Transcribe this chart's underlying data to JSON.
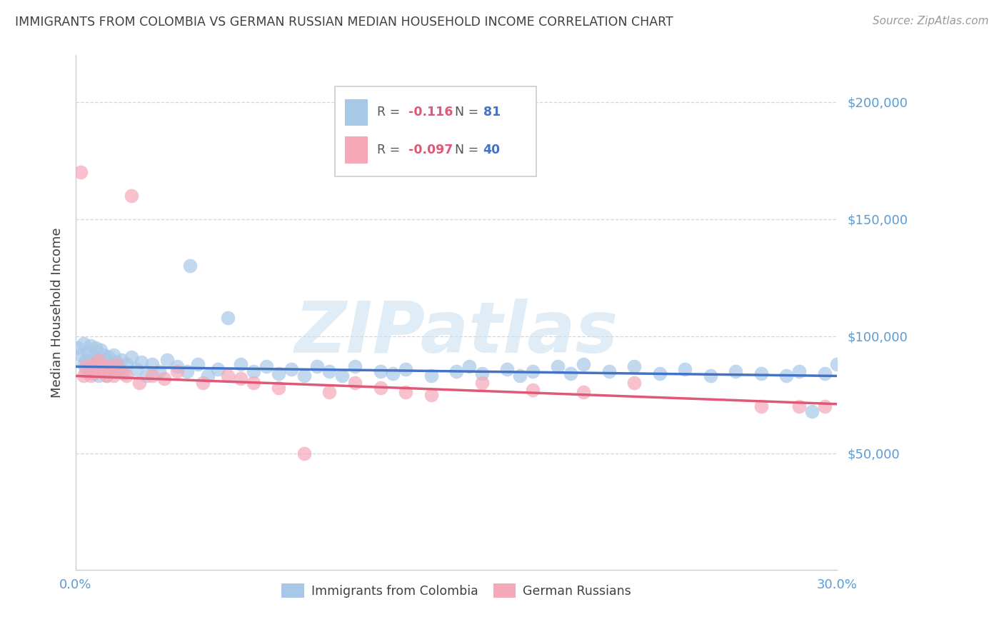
{
  "title": "IMMIGRANTS FROM COLOMBIA VS GERMAN RUSSIAN MEDIAN HOUSEHOLD INCOME CORRELATION CHART",
  "source": "Source: ZipAtlas.com",
  "ylabel": "Median Household Income",
  "legend1_label": "Immigrants from Colombia",
  "legend2_label": "German Russians",
  "watermark": "ZIPatlas",
  "blue_color": "#a8c8e8",
  "pink_color": "#f4a8b8",
  "line_blue": "#4472c4",
  "line_pink": "#e05878",
  "axis_color": "#5b9bd5",
  "title_color": "#404040",
  "grid_color": "#cccccc",
  "blue_x": [
    0.001,
    0.002,
    0.003,
    0.003,
    0.004,
    0.004,
    0.005,
    0.005,
    0.006,
    0.006,
    0.007,
    0.007,
    0.008,
    0.008,
    0.009,
    0.009,
    0.01,
    0.01,
    0.011,
    0.011,
    0.012,
    0.012,
    0.013,
    0.013,
    0.014,
    0.015,
    0.015,
    0.016,
    0.017,
    0.018,
    0.019,
    0.02,
    0.022,
    0.024,
    0.026,
    0.028,
    0.03,
    0.033,
    0.036,
    0.04,
    0.044,
    0.048,
    0.052,
    0.056,
    0.06,
    0.065,
    0.07,
    0.075,
    0.08,
    0.085,
    0.09,
    0.095,
    0.1,
    0.105,
    0.11,
    0.12,
    0.125,
    0.13,
    0.14,
    0.15,
    0.155,
    0.16,
    0.17,
    0.175,
    0.18,
    0.19,
    0.195,
    0.2,
    0.21,
    0.22,
    0.23,
    0.24,
    0.25,
    0.26,
    0.27,
    0.28,
    0.285,
    0.29,
    0.295,
    0.3,
    0.045
  ],
  "blue_y": [
    95000,
    92000,
    97000,
    88000,
    90000,
    85000,
    93000,
    87000,
    96000,
    89000,
    91000,
    84000,
    95000,
    86000,
    90000,
    83000,
    94000,
    88000,
    92000,
    85000,
    89000,
    83000,
    91000,
    87000,
    88000,
    92000,
    85000,
    89000,
    86000,
    90000,
    84000,
    88000,
    91000,
    86000,
    89000,
    83000,
    88000,
    85000,
    90000,
    87000,
    85000,
    88000,
    83000,
    86000,
    108000,
    88000,
    85000,
    87000,
    84000,
    86000,
    83000,
    87000,
    85000,
    83000,
    87000,
    85000,
    84000,
    86000,
    83000,
    85000,
    87000,
    84000,
    86000,
    83000,
    85000,
    87000,
    84000,
    88000,
    85000,
    87000,
    84000,
    86000,
    83000,
    85000,
    84000,
    83000,
    85000,
    68000,
    84000,
    88000,
    130000
  ],
  "pink_x": [
    0.002,
    0.003,
    0.004,
    0.005,
    0.006,
    0.007,
    0.008,
    0.009,
    0.01,
    0.011,
    0.012,
    0.013,
    0.014,
    0.015,
    0.016,
    0.018,
    0.02,
    0.022,
    0.025,
    0.03,
    0.035,
    0.04,
    0.05,
    0.06,
    0.065,
    0.07,
    0.08,
    0.09,
    0.1,
    0.11,
    0.12,
    0.13,
    0.14,
    0.16,
    0.18,
    0.2,
    0.22,
    0.27,
    0.285,
    0.295
  ],
  "pink_y": [
    170000,
    83000,
    87000,
    85000,
    83000,
    88000,
    86000,
    90000,
    88000,
    85000,
    83000,
    87000,
    85000,
    83000,
    88000,
    85000,
    83000,
    160000,
    80000,
    83000,
    82000,
    85000,
    80000,
    83000,
    82000,
    80000,
    78000,
    50000,
    76000,
    80000,
    78000,
    76000,
    75000,
    80000,
    77000,
    76000,
    80000,
    70000,
    70000,
    70000
  ]
}
